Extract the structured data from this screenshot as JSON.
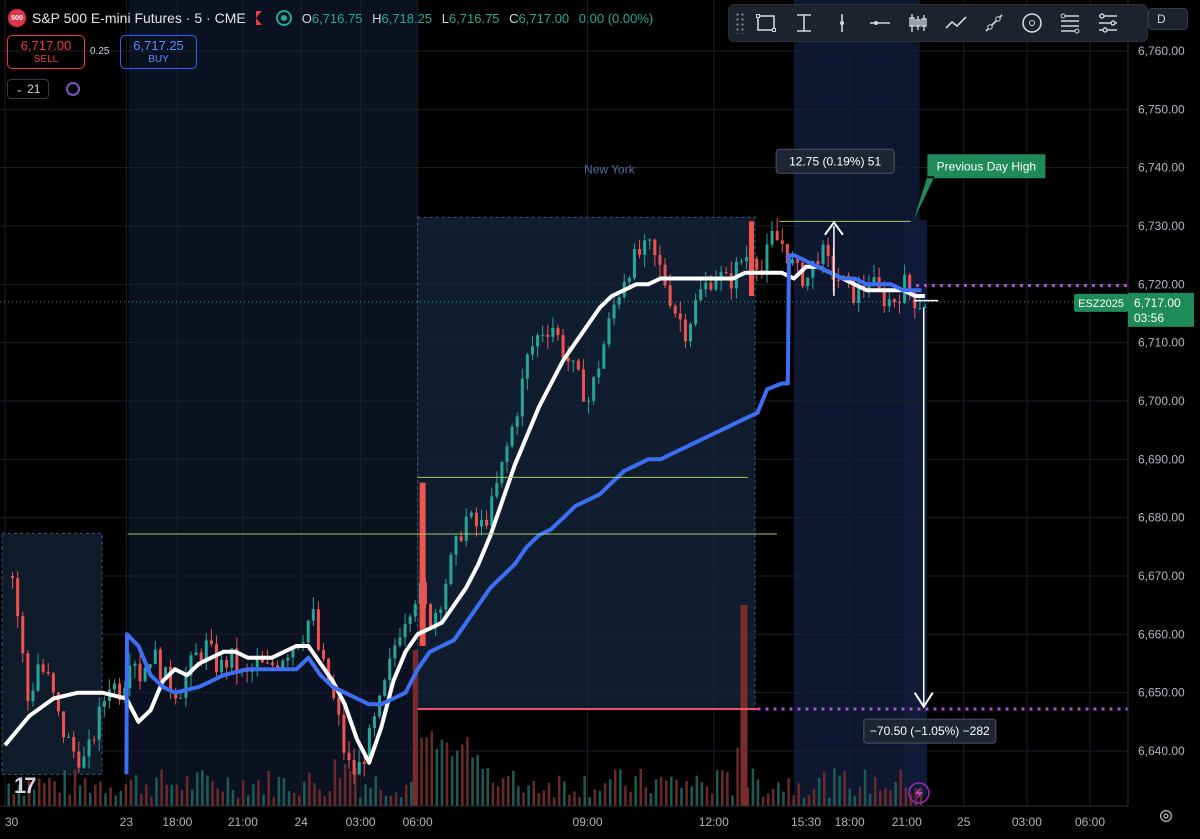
{
  "header": {
    "logo_text": "500",
    "title": "S&P 500 E-mini Futures · 5 · CME",
    "ohlc": {
      "open_label": "O",
      "open": "6,716.75",
      "high_label": "H",
      "high": "6,718.25",
      "low_label": "L",
      "low": "6,716.75",
      "close_label": "C",
      "close": "6,717.00",
      "change": "0.00 (0.00%)"
    }
  },
  "trade": {
    "sell_price": "6,717.00",
    "sell_label": "SELL",
    "spread": "0.25",
    "buy_price": "6,717.25",
    "buy_label": "BUY"
  },
  "interval_selector": "21",
  "toolbar": {
    "tools": [
      "rectangle-icon",
      "text-cursor-icon",
      "vertical-line-icon",
      "horizontal-line-icon",
      "candles-icon",
      "trend-icon",
      "ray-icon",
      "circle-icon",
      "fib-icon",
      "path-icon"
    ],
    "extra": "D"
  },
  "colors": {
    "up": "#26a69a",
    "down": "#ef5350",
    "ema": "#ffffff",
    "vwap": "#3d6ff5",
    "session": "#0d2340",
    "highlight": "#2e3f63",
    "guide": "#9ccc65",
    "dotted": "#b04cd8",
    "label_green": "#1f8a5a"
  },
  "chart_data": {
    "type": "candlestick",
    "symbol_tag": "ESZ2025",
    "last_price": "6,717.00",
    "countdown": "03:56",
    "ylim": [
      6632,
      6768
    ],
    "y_ticks": [
      6640,
      6650,
      6660,
      6670,
      6680,
      6690,
      6700,
      6710,
      6720,
      6730,
      6740,
      6750,
      6760
    ],
    "y_tick_labels": [
      "6,640.00",
      "6,650.00",
      "6,660.00",
      "6,670.00",
      "6,680.00",
      "6,690.00",
      "6,700.00",
      "6,710.00",
      "6,720.00",
      "6,730.00",
      "6,740.00",
      "6,750.00",
      "6,760.00"
    ],
    "x_ticks": [
      {
        "label": "30",
        "t": 0.0
      },
      {
        "label": "23",
        "t": 10.0
      },
      {
        "label": "18:00",
        "t": 14.2
      },
      {
        "label": "21:00",
        "t": 19.6
      },
      {
        "label": "24",
        "t": 24.4
      },
      {
        "label": "03:00",
        "t": 29.3
      },
      {
        "label": "06:00",
        "t": 34.0
      },
      {
        "label": "09:00",
        "t": 48.0
      },
      {
        "label": "12:00",
        "t": 58.4
      },
      {
        "label": "15:30",
        "t": 66.0
      },
      {
        "label": "18:00",
        "t": 69.6
      },
      {
        "label": "21:00",
        "t": 74.3
      },
      {
        "label": "25",
        "t": 79.0
      },
      {
        "label": "03:00",
        "t": 84.2
      },
      {
        "label": "06:00",
        "t": 89.4
      }
    ],
    "t_range": [
      0,
      99.5
    ],
    "price_path": [
      [
        0.5,
        6670
      ],
      [
        1,
        6662
      ],
      [
        1.8,
        6648
      ],
      [
        2.6,
        6655
      ],
      [
        3.5,
        6652
      ],
      [
        4.5,
        6644
      ],
      [
        5.5,
        6640
      ],
      [
        6.5,
        6638
      ],
      [
        7.5,
        6645
      ],
      [
        8.5,
        6652
      ],
      [
        9.5,
        6650
      ],
      [
        10.3,
        6658
      ],
      [
        11,
        6653
      ],
      [
        12,
        6657
      ],
      [
        13.2,
        6652
      ],
      [
        14.2,
        6650
      ],
      [
        15.5,
        6656
      ],
      [
        16.5,
        6658
      ],
      [
        17.5,
        6654
      ],
      [
        18.5,
        6656
      ],
      [
        19.6,
        6652
      ],
      [
        20.5,
        6655
      ],
      [
        21.5,
        6654
      ],
      [
        22.5,
        6656
      ],
      [
        23.5,
        6658
      ],
      [
        24.4,
        6660
      ],
      [
        25.2,
        6664
      ],
      [
        25.8,
        6656
      ],
      [
        26.5,
        6652
      ],
      [
        27.3,
        6646
      ],
      [
        28,
        6638
      ],
      [
        28.8,
        6636
      ],
      [
        29.6,
        6640
      ],
      [
        30.5,
        6646
      ],
      [
        31.3,
        6652
      ],
      [
        32.2,
        6660
      ],
      [
        33,
        6664
      ],
      [
        34,
        6668
      ],
      [
        34.8,
        6662
      ],
      [
        35.6,
        6665
      ],
      [
        36.6,
        6672
      ],
      [
        37.8,
        6680
      ],
      [
        39,
        6678
      ],
      [
        40,
        6682
      ],
      [
        41,
        6690
      ],
      [
        42,
        6698
      ],
      [
        43,
        6708
      ],
      [
        44,
        6712
      ],
      [
        45,
        6713
      ],
      [
        46,
        6708
      ],
      [
        47,
        6704
      ],
      [
        48,
        6700
      ],
      [
        49,
        6708
      ],
      [
        50,
        6716
      ],
      [
        51,
        6722
      ],
      [
        52,
        6725
      ],
      [
        53,
        6726
      ],
      [
        54,
        6722
      ],
      [
        55,
        6716
      ],
      [
        56,
        6712
      ],
      [
        57,
        6718
      ],
      [
        58.4,
        6722
      ],
      [
        59.5,
        6720
      ],
      [
        60.5,
        6724
      ],
      [
        61.5,
        6726
      ],
      [
        62.3,
        6722
      ],
      [
        63,
        6728
      ],
      [
        64,
        6727
      ],
      [
        65,
        6722
      ],
      [
        66,
        6721
      ],
      [
        67,
        6726
      ],
      [
        68,
        6722
      ],
      [
        69,
        6720
      ],
      [
        70,
        6718
      ],
      [
        71,
        6721
      ],
      [
        72,
        6718
      ],
      [
        73,
        6717
      ],
      [
        74,
        6720
      ],
      [
        75,
        6717
      ],
      [
        75.8,
        6717
      ]
    ],
    "series": [
      {
        "name": "",
        "kind": "ema",
        "points": [
          [
            0,
            6641
          ],
          [
            2,
            6646
          ],
          [
            4,
            6649
          ],
          [
            6,
            6650
          ],
          [
            8,
            6650
          ],
          [
            10,
            6649
          ],
          [
            11,
            6645
          ],
          [
            12,
            6647
          ],
          [
            13,
            6652
          ],
          [
            14,
            6654
          ],
          [
            15,
            6653
          ],
          [
            16,
            6655
          ],
          [
            17,
            6656
          ],
          [
            18,
            6657
          ],
          [
            19,
            6657
          ],
          [
            20,
            6656
          ],
          [
            21,
            6656
          ],
          [
            22,
            6656
          ],
          [
            23,
            6657
          ],
          [
            24,
            6658
          ],
          [
            25,
            6658
          ],
          [
            26,
            6655
          ],
          [
            27,
            6652
          ],
          [
            28,
            6648
          ],
          [
            29,
            6642
          ],
          [
            30,
            6638
          ],
          [
            31,
            6644
          ],
          [
            32,
            6652
          ],
          [
            33,
            6657
          ],
          [
            34,
            6660
          ],
          [
            35,
            6661
          ],
          [
            36,
            6662
          ],
          [
            37,
            6665
          ],
          [
            38,
            6668
          ],
          [
            39,
            6672
          ],
          [
            40,
            6677
          ],
          [
            41,
            6683
          ],
          [
            42,
            6689
          ],
          [
            43,
            6694
          ],
          [
            44,
            6699
          ],
          [
            45,
            6703
          ],
          [
            46,
            6707
          ],
          [
            47,
            6710
          ],
          [
            48,
            6713
          ],
          [
            49,
            6716
          ],
          [
            50,
            6718
          ],
          [
            51,
            6719
          ],
          [
            52,
            6720
          ],
          [
            53,
            6720
          ],
          [
            54,
            6721
          ],
          [
            55,
            6721
          ],
          [
            56,
            6721
          ],
          [
            57,
            6721
          ],
          [
            58,
            6721
          ],
          [
            59,
            6721
          ],
          [
            60,
            6721
          ],
          [
            61,
            6722
          ],
          [
            62,
            6722
          ],
          [
            63,
            6722
          ],
          [
            64,
            6722
          ],
          [
            65,
            6721
          ],
          [
            66,
            6723
          ],
          [
            67,
            6723
          ],
          [
            68,
            6722
          ],
          [
            69,
            6721
          ],
          [
            70,
            6720
          ],
          [
            71,
            6719
          ],
          [
            72,
            6719
          ],
          [
            73,
            6719
          ],
          [
            74,
            6719
          ],
          [
            75,
            6718
          ],
          [
            75.8,
            6718
          ]
        ]
      },
      {
        "name": "",
        "kind": "vwap",
        "points": [
          [
            10,
            6636
          ],
          [
            10.05,
            6660
          ],
          [
            11,
            6658
          ],
          [
            12,
            6653
          ],
          [
            13,
            6651
          ],
          [
            14,
            6650
          ],
          [
            16,
            6651
          ],
          [
            18,
            6653
          ],
          [
            20,
            6654
          ],
          [
            22,
            6654
          ],
          [
            24,
            6654
          ],
          [
            25,
            6656
          ],
          [
            26,
            6653
          ],
          [
            27,
            6651
          ],
          [
            28,
            6650
          ],
          [
            29,
            6649
          ],
          [
            30,
            6648
          ],
          [
            31,
            6648
          ],
          [
            32,
            6649
          ],
          [
            33,
            6650
          ],
          [
            34,
            6654
          ],
          [
            35,
            6657
          ],
          [
            36,
            6658
          ],
          [
            37,
            6659
          ],
          [
            38,
            6662
          ],
          [
            39,
            6665
          ],
          [
            40,
            6668
          ],
          [
            41,
            6670
          ],
          [
            42,
            6672
          ],
          [
            43,
            6675
          ],
          [
            44,
            6677
          ],
          [
            45,
            6678
          ],
          [
            46,
            6680
          ],
          [
            47,
            6682
          ],
          [
            48,
            6683
          ],
          [
            49,
            6684
          ],
          [
            50,
            6686
          ],
          [
            51,
            6688
          ],
          [
            52,
            6689
          ],
          [
            53,
            6690
          ],
          [
            54,
            6690
          ],
          [
            55,
            6691
          ],
          [
            56,
            6692
          ],
          [
            57,
            6693
          ],
          [
            58,
            6694
          ],
          [
            59,
            6695
          ],
          [
            60,
            6696
          ],
          [
            61,
            6697
          ],
          [
            62,
            6698
          ],
          [
            62.8,
            6702
          ],
          [
            64,
            6703
          ],
          [
            64.5,
            6703
          ],
          [
            64.6,
            6725
          ],
          [
            65,
            6725
          ],
          [
            66,
            6724
          ],
          [
            67,
            6723
          ],
          [
            68,
            6722
          ],
          [
            69,
            6721
          ],
          [
            70,
            6721
          ],
          [
            71,
            6720
          ],
          [
            72,
            6720
          ],
          [
            73,
            6720
          ],
          [
            74,
            6719
          ],
          [
            75,
            6719
          ],
          [
            75.5,
            6719
          ]
        ]
      }
    ],
    "session_label": "New York",
    "measure_up": "12.75 (0.19%) 51",
    "measure_down": "−70.50 (−1.05%) −282",
    "previous_day_high_label": "Previous Day High",
    "levels": {
      "prev_high": 6730.8,
      "prev_low": 6647.2,
      "dotted_upper": 6719.8,
      "dotted_lower": 6647.2,
      "green_a": 6686.9,
      "green_b": 6677.2,
      "ny_box_top": 6731.5,
      "ny_box_bottom": 6647.2
    }
  }
}
